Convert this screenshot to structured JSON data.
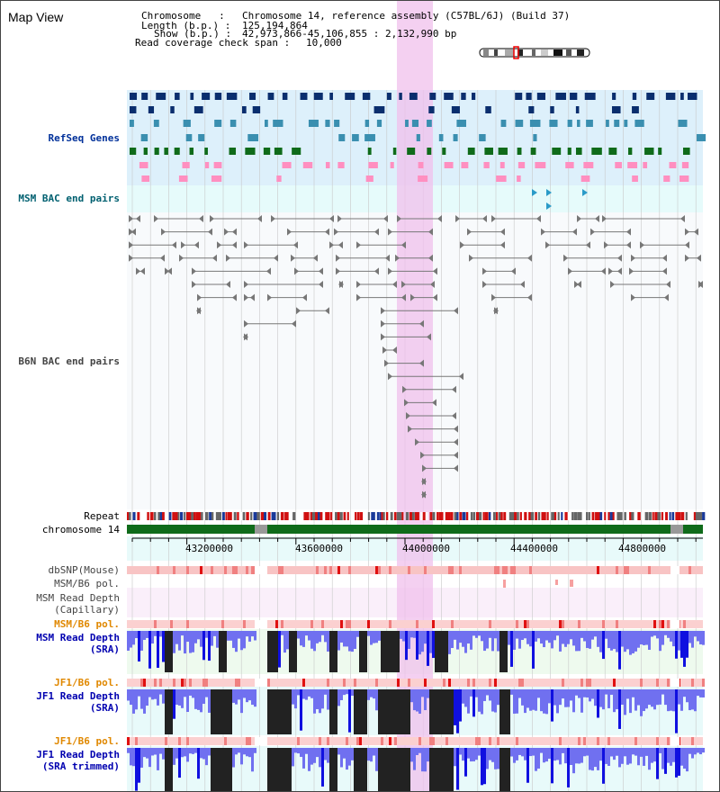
{
  "title": "Map View",
  "header": {
    "chr_key": "Chromosome   :",
    "chr_val": "Chromosome 14, reference assembly (C57BL/6J) (Build 37)",
    "len_key": "Length (b.p.) :",
    "len_val": "125,194,864",
    "show_key": "Show (b.p.) :",
    "show_val": "42,973,866-45,106,855 : 2,132,990 bp",
    "span_key": "Read coverage check span :",
    "span_val": "10,000"
  },
  "tracks": {
    "refseq": "RefSeq Genes",
    "msm_bac": "MSM BAC end pairs",
    "b6n_bac": "B6N BAC end pairs",
    "repeat": "Repeat",
    "chromosome": "chromosome 14",
    "dbsnp": "dbSNP(Mouse)",
    "msm_b6_pol1": "MSM/B6 pol.",
    "msm_cap_1": "MSM Read Depth",
    "msm_cap_2": "(Capillary)",
    "msm_b6_pol2": "MSM/B6 pol.",
    "msm_sra_1": "MSM Read Depth",
    "msm_sra_2": "(SRA)",
    "jf1_pol1": "JF1/B6 pol.",
    "jf1_sra_1": "JF1 Read Depth",
    "jf1_sra_2": "(SRA)",
    "jf1_pol2": "JF1/B6 pol.",
    "jf1_trim_1": "JF1 Read Depth",
    "jf1_trim_2": "(SRA trimmed)"
  },
  "axis": {
    "ticks": [
      "43200000",
      "43600000",
      "44000000",
      "44400000",
      "44800000"
    ]
  },
  "colors": {
    "refseq_dark": "#0a2e6e",
    "refseq_mid": "#3a8fb0",
    "refseq_green": "#0f6b1a",
    "refseq_pink": "#ff8fc0",
    "msm_bac": "#2a9bc8",
    "highlight": "#f0c0ec",
    "chrom_green": "#0f6b1a",
    "depth_blue": "#1010e0",
    "depth_black": "#222222"
  }
}
